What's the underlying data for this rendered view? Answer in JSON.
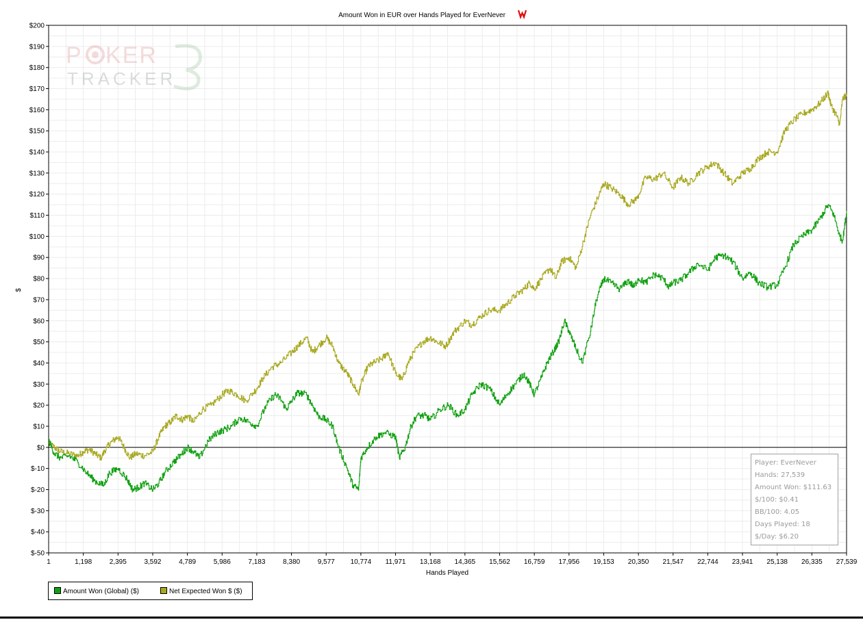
{
  "chart_data": {
    "type": "line",
    "title": "Amount Won in EUR over Hands Played for EverNever",
    "xlabel": "Hands Played",
    "ylabel": "$",
    "xlim": [
      1,
      27539
    ],
    "ylim": [
      -50,
      200
    ],
    "x_ticks": [
      "1",
      "1,198",
      "2,395",
      "3,592",
      "4,789",
      "5,986",
      "7,183",
      "8,380",
      "9,577",
      "10,774",
      "11,971",
      "13,168",
      "14,365",
      "15,562",
      "16,759",
      "17,956",
      "19,153",
      "20,350",
      "21,547",
      "22,744",
      "23,941",
      "25,138",
      "26,335",
      "27,539"
    ],
    "y_ticks": [
      "$-50",
      "$-40",
      "$-30",
      "$-20",
      "$-10",
      "$0",
      "$10",
      "$20",
      "$30",
      "$40",
      "$50",
      "$60",
      "$70",
      "$80",
      "$90",
      "$100",
      "$110",
      "$120",
      "$130",
      "$140",
      "$150",
      "$160",
      "$170",
      "$180",
      "$190",
      "$200"
    ],
    "grid": true,
    "legend_position": "bottom-left",
    "series": [
      {
        "name": "Amount Won (Global) ($)",
        "color": "#10a010",
        "x": [
          1,
          200,
          400,
          700,
          1000,
          1300,
          1600,
          1900,
          2100,
          2395,
          2700,
          2900,
          3100,
          3300,
          3600,
          3800,
          4000,
          4300,
          4600,
          4789,
          5000,
          5200,
          5500,
          5800,
          6000,
          6300,
          6600,
          6900,
          7183,
          7500,
          7800,
          8000,
          8200,
          8380,
          8600,
          8900,
          9100,
          9300,
          9577,
          9800,
          10000,
          10300,
          10500,
          10700,
          10774,
          11000,
          11300,
          11600,
          11971,
          12100,
          12300,
          12500,
          12700,
          13000,
          13168,
          13500,
          13800,
          14100,
          14365,
          14600,
          14900,
          15200,
          15562,
          15800,
          16100,
          16400,
          16600,
          16759,
          17000,
          17200,
          17400,
          17600,
          17800,
          17956,
          18100,
          18400,
          18700,
          18900,
          19153,
          19400,
          19700,
          20000,
          20200,
          20350,
          20600,
          20900,
          21200,
          21400,
          21547,
          21800,
          22100,
          22400,
          22744,
          23000,
          23300,
          23600,
          23941,
          24200,
          24500,
          24800,
          25138,
          25400,
          25700,
          26000,
          26335,
          26600,
          26900,
          27100,
          27300,
          27400,
          27539
        ],
        "values": [
          3,
          -3,
          -5,
          -4,
          -7,
          -12,
          -16,
          -18,
          -12,
          -10,
          -15,
          -20,
          -19,
          -17,
          -20,
          -17,
          -12,
          -7,
          -3,
          0,
          -2,
          -5,
          3,
          7,
          8,
          10,
          14,
          12,
          10,
          20,
          25,
          23,
          18,
          22,
          26,
          25,
          20,
          15,
          13,
          10,
          0,
          -10,
          -18,
          -20,
          -5,
          0,
          5,
          7,
          5,
          -5,
          0,
          10,
          15,
          15,
          13,
          18,
          20,
          15,
          18,
          25,
          30,
          28,
          20,
          25,
          30,
          35,
          30,
          25,
          33,
          40,
          45,
          50,
          60,
          55,
          50,
          40,
          55,
          70,
          80,
          78,
          75,
          79,
          76,
          80,
          78,
          82,
          80,
          76,
          78,
          79,
          83,
          87,
          84,
          90,
          91,
          88,
          80,
          83,
          78,
          76,
          77,
          85,
          96,
          100,
          103,
          108,
          115,
          110,
          100,
          98,
          112
        ]
      },
      {
        "name": "Net Expected Won $ ($)",
        "color": "#a8a820",
        "x": [
          1,
          200,
          400,
          700,
          1000,
          1198,
          1400,
          1600,
          1800,
          2000,
          2200,
          2395,
          2600,
          2800,
          3000,
          3300,
          3592,
          3800,
          4000,
          4200,
          4400,
          4600,
          4789,
          5000,
          5300,
          5600,
          5986,
          6200,
          6500,
          6800,
          7183,
          7400,
          7700,
          8000,
          8380,
          8600,
          8900,
          9100,
          9300,
          9577,
          9800,
          10000,
          10300,
          10500,
          10700,
          10774,
          11000,
          11200,
          11500,
          11700,
          11971,
          12200,
          12400,
          12600,
          12900,
          13168,
          13400,
          13700,
          14000,
          14365,
          14600,
          14900,
          15200,
          15562,
          15800,
          16100,
          16400,
          16600,
          16759,
          17000,
          17300,
          17500,
          17700,
          17956,
          18200,
          18500,
          18700,
          19000,
          19153,
          19400,
          19700,
          20000,
          20300,
          20600,
          20900,
          21200,
          21547,
          21800,
          22100,
          22400,
          22744,
          23000,
          23300,
          23600,
          23941,
          24200,
          24500,
          24800,
          25138,
          25400,
          25700,
          26000,
          26335,
          26600,
          26900,
          27000,
          27200,
          27300,
          27400,
          27539
        ],
        "values": [
          2,
          0,
          -2,
          -3,
          -4,
          -2,
          -1,
          -3,
          -5,
          0,
          3,
          5,
          0,
          -5,
          -3,
          -4,
          -2,
          5,
          10,
          12,
          15,
          13,
          15,
          12,
          18,
          20,
          25,
          27,
          25,
          22,
          28,
          33,
          38,
          40,
          45,
          48,
          52,
          45,
          48,
          52,
          48,
          40,
          35,
          30,
          25,
          30,
          38,
          40,
          42,
          45,
          35,
          32,
          40,
          45,
          50,
          52,
          50,
          48,
          55,
          60,
          58,
          62,
          65,
          65,
          68,
          72,
          75,
          78,
          75,
          80,
          85,
          80,
          88,
          90,
          85,
          100,
          110,
          120,
          125,
          123,
          120,
          115,
          118,
          128,
          127,
          130,
          123,
          128,
          125,
          130,
          133,
          135,
          130,
          125,
          130,
          132,
          137,
          140,
          140,
          150,
          155,
          158,
          160,
          163,
          168,
          162,
          157,
          153,
          165,
          167
        ]
      }
    ]
  },
  "stats": {
    "player": "Player: EverNever",
    "hands": "Hands: 27,539",
    "amount_won": "Amount Won: $111.63",
    "per100": "$/100: $0.41",
    "bb100": "BB/100: 4.05",
    "days": "Days Played: 18",
    "per_day": "$/Day: $6.20"
  },
  "logo_text": "POKER TRACKER 3",
  "colors": {
    "grid": "#ececec",
    "axis": "#000000",
    "zero_line": "#000000"
  }
}
